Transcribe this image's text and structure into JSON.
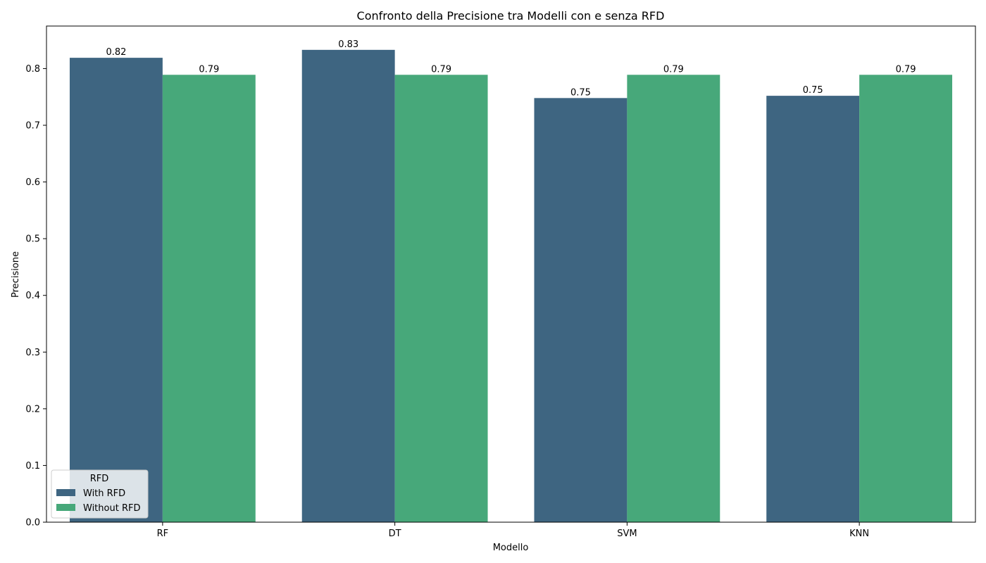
{
  "chart_data": {
    "type": "bar",
    "title": "Confronto della Precisione tra Modelli con e senza RFD",
    "xlabel": "Modello",
    "ylabel": "Precisione",
    "categories": [
      "RF",
      "DT",
      "SVM",
      "KNN"
    ],
    "series": [
      {
        "name": "With RFD",
        "values": [
          0.819,
          0.833,
          0.748,
          0.752
        ],
        "labels": [
          "0.82",
          "0.83",
          "0.75",
          "0.75"
        ],
        "color": "#3e6581"
      },
      {
        "name": "Without RFD",
        "values": [
          0.789,
          0.789,
          0.789,
          0.789
        ],
        "labels": [
          "0.79",
          "0.79",
          "0.79",
          "0.79"
        ],
        "color": "#47a87a"
      }
    ],
    "ylim": [
      0,
      0.875
    ],
    "yticks": [
      0.0,
      0.1,
      0.2,
      0.3,
      0.4,
      0.5,
      0.6,
      0.7,
      0.8
    ],
    "ytick_labels": [
      "0.0",
      "0.1",
      "0.2",
      "0.3",
      "0.4",
      "0.5",
      "0.6",
      "0.7",
      "0.8"
    ],
    "grid": false,
    "legend": {
      "title": "RFD",
      "placement": "lower-left"
    }
  }
}
